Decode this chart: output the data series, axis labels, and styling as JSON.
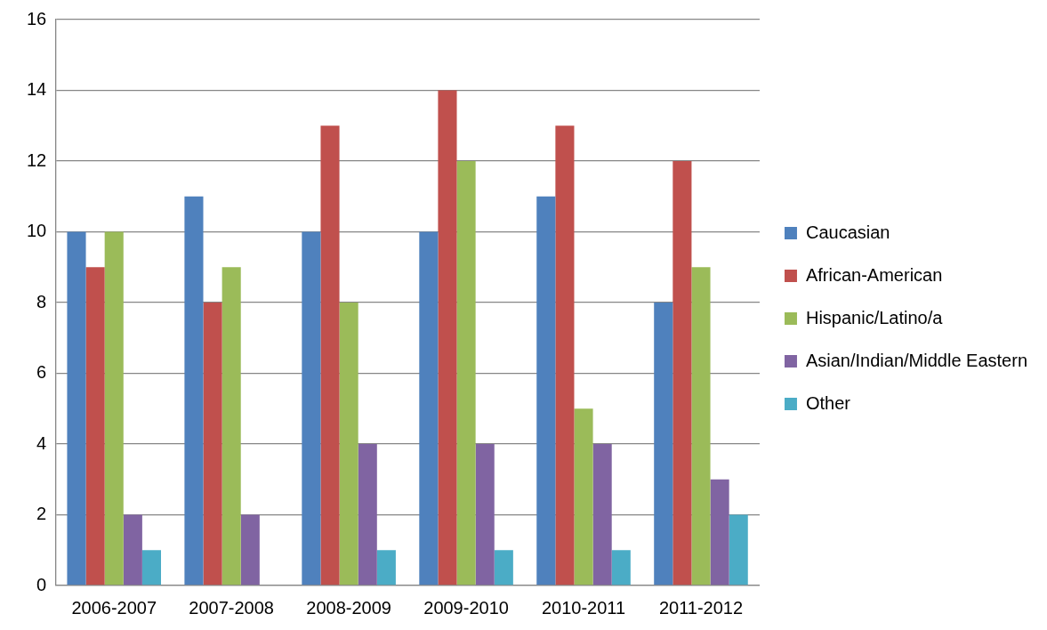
{
  "chart_data": {
    "type": "bar",
    "categories": [
      "2006-2007",
      "2007-2008",
      "2008-2009",
      "2009-2010",
      "2010-2011",
      "2011-2012"
    ],
    "series": [
      {
        "name": "Caucasian",
        "color": "#4f81bd",
        "values": [
          10,
          11,
          10,
          10,
          11,
          8
        ]
      },
      {
        "name": "African-American",
        "color": "#c0504d",
        "values": [
          9,
          8,
          13,
          14,
          13,
          12
        ]
      },
      {
        "name": "Hispanic/Latino/a",
        "color": "#9bbb59",
        "values": [
          10,
          9,
          8,
          12,
          5,
          9
        ]
      },
      {
        "name": "Asian/Indian/Middle Eastern",
        "color": "#8064a2",
        "values": [
          2,
          2,
          4,
          4,
          4,
          3
        ]
      },
      {
        "name": "Other",
        "color": "#4bacc6",
        "values": [
          1,
          0,
          1,
          1,
          1,
          2
        ]
      }
    ],
    "ylim": [
      0,
      16
    ],
    "yticks": [
      0,
      2,
      4,
      6,
      8,
      10,
      12,
      14,
      16
    ],
    "grid": "y",
    "legend": "right"
  }
}
